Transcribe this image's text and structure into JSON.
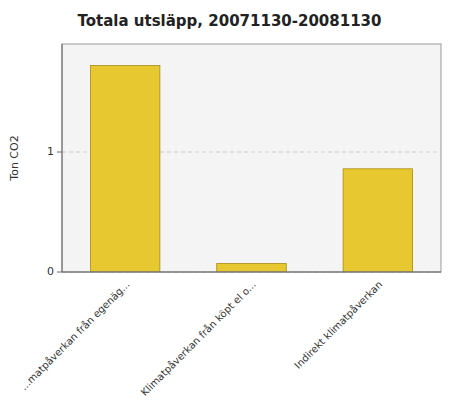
{
  "chart_data": {
    "type": "bar",
    "title": "Totala utsläpp, 20071130-20081130",
    "ylabel": "Ton CO2",
    "categories": [
      "...matpåverkan från egenäg...",
      "Klimatpåverkan från köpt el o...",
      "Indirekt klimatpåverkan"
    ],
    "values": [
      1.72,
      0.07,
      0.86
    ],
    "color": "#E8C830",
    "ylim": [
      0,
      1.9
    ],
    "yticks": [
      0,
      1
    ],
    "grid": true
  }
}
